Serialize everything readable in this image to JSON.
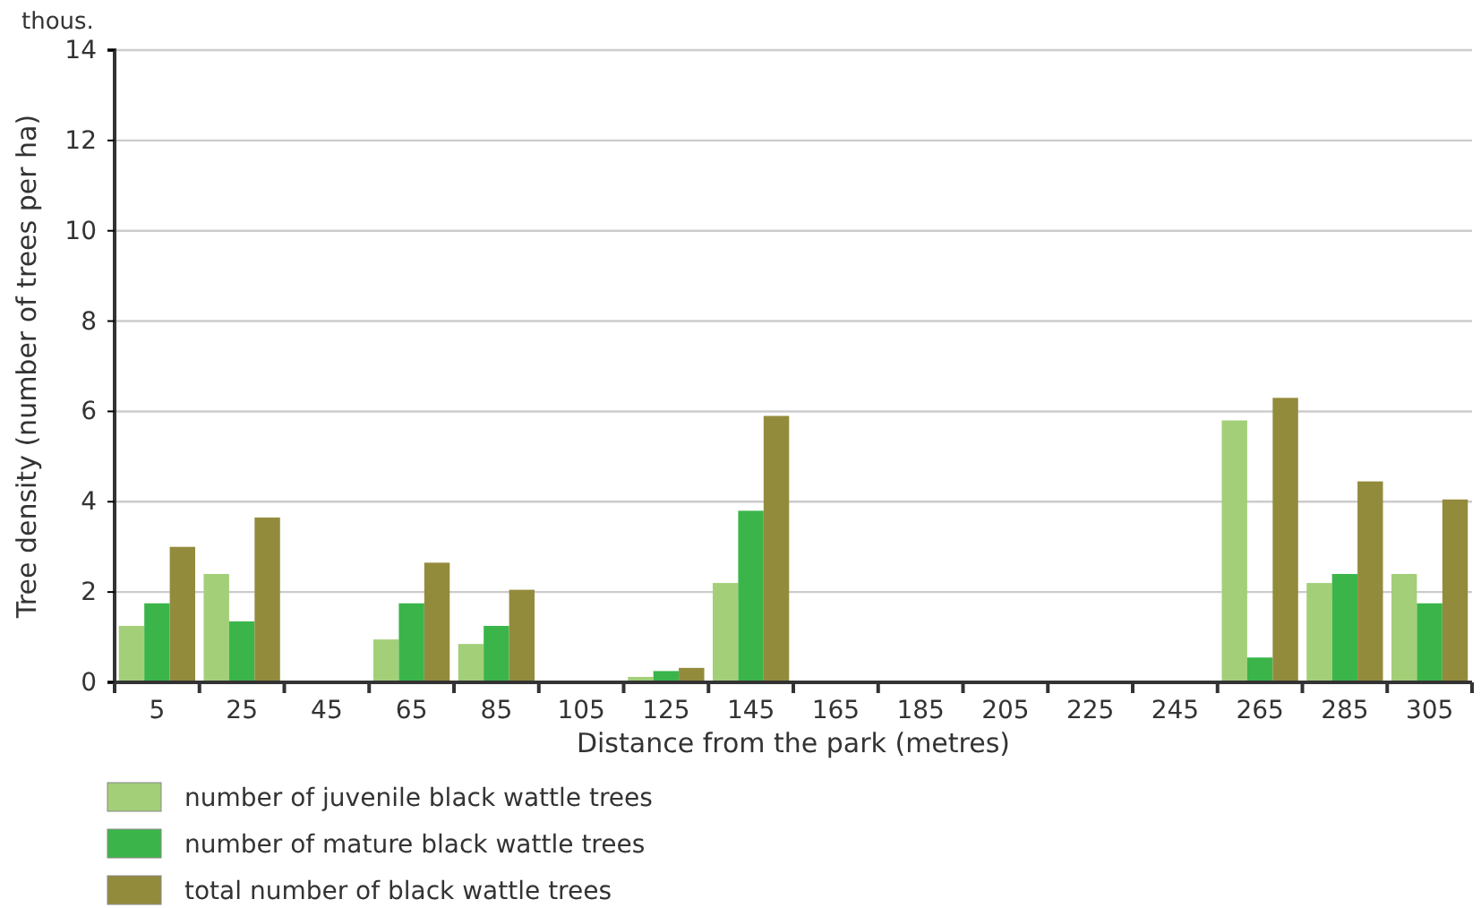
{
  "chart_data": {
    "type": "bar",
    "xlabel": "Distance from the park (metres)",
    "ylabel": "Tree density (number of trees per ha)",
    "annotations": [
      "thous."
    ],
    "categories": [
      "5",
      "25",
      "45",
      "65",
      "85",
      "105",
      "125",
      "145",
      "165",
      "185",
      "205",
      "225",
      "245",
      "265",
      "285",
      "305"
    ],
    "series": [
      {
        "name": "number of juvenile black wattle trees",
        "color": "#a3cf78",
        "values": [
          1.25,
          2.4,
          0,
          0.95,
          0.85,
          0,
          0.12,
          2.2,
          0,
          0,
          0,
          0,
          0,
          5.8,
          2.2,
          2.4
        ]
      },
      {
        "name": "number of mature black wattle trees",
        "color": "#3bb54a",
        "values": [
          1.75,
          1.35,
          0,
          1.75,
          1.25,
          0,
          0.25,
          3.8,
          0,
          0,
          0,
          0,
          0,
          0.55,
          2.4,
          1.75
        ]
      },
      {
        "name": "total number of black wattle trees",
        "color": "#938b3c",
        "values": [
          3.0,
          3.65,
          0,
          2.65,
          2.05,
          0,
          0.32,
          5.9,
          0,
          0,
          0,
          0,
          0,
          6.3,
          4.45,
          4.05
        ]
      }
    ],
    "ylim": [
      0,
      14
    ],
    "yticks": [
      0,
      2,
      4,
      6,
      8,
      10,
      12,
      14
    ],
    "grid": "y",
    "legend": "bottom"
  }
}
